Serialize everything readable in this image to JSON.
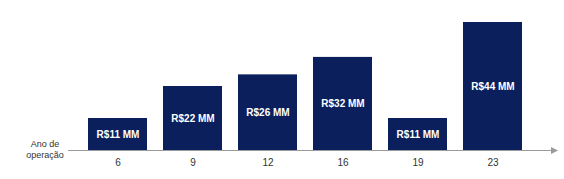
{
  "chart_data": {
    "type": "bar",
    "categories": [
      "6",
      "9",
      "12",
      "16",
      "19",
      "23"
    ],
    "values": [
      11,
      22,
      26,
      32,
      11,
      44
    ],
    "value_labels": [
      "R$11 MM",
      "R$22 MM",
      "R$26 MM",
      "R$32 MM",
      "R$11 MM",
      "R$44 MM"
    ],
    "color": "#0a1f5c",
    "x_label": "Ano de operação",
    "ylim": [
      0,
      44
    ],
    "data_labels": true,
    "tick_labels": "x",
    "grid": false
  }
}
